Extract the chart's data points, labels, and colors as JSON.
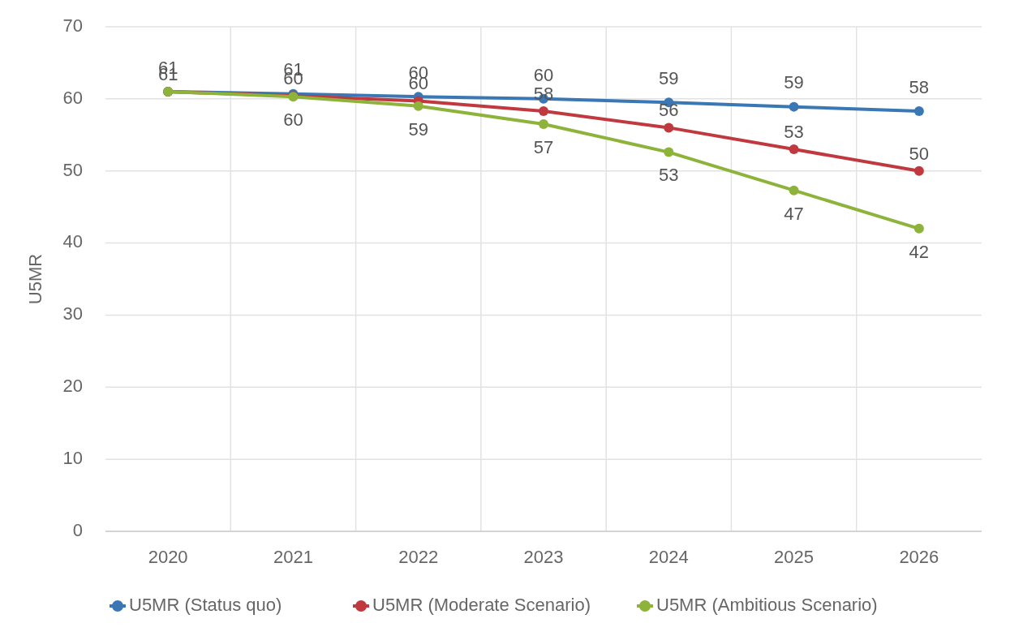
{
  "chart_data": {
    "type": "line",
    "ylabel": "U5MR",
    "categories": [
      "2020",
      "2021",
      "2022",
      "2023",
      "2024",
      "2025",
      "2026"
    ],
    "ylim": [
      0,
      70
    ],
    "yticks": [
      0,
      10,
      20,
      30,
      40,
      50,
      60,
      70
    ],
    "grid": true,
    "legend": "bottom",
    "marker": "circle",
    "line_style": "solid",
    "series": [
      {
        "name": "U5MR (Status quo)",
        "color": "#3a78b5",
        "values": [
          61,
          60.7,
          60.3,
          60,
          59.5,
          58.9,
          58.3
        ],
        "value_labels": [
          "61",
          "61",
          "60",
          "60",
          "59",
          "59",
          "58"
        ]
      },
      {
        "name": "U5MR (Moderate Scenario)",
        "color": "#c0393f",
        "values": [
          61,
          60.4,
          59.7,
          58.3,
          56,
          53,
          50
        ],
        "value_labels": [
          "61",
          "60",
          "60",
          "58",
          "56",
          "53",
          "50"
        ]
      },
      {
        "name": "U5MR (Ambitious Scenario)",
        "color": "#8db33a",
        "values": [
          61,
          60.3,
          59,
          56.5,
          52.6,
          47.3,
          42
        ],
        "value_labels": [
          null,
          "60",
          "59",
          "57",
          "53",
          "47",
          "42"
        ]
      }
    ]
  }
}
